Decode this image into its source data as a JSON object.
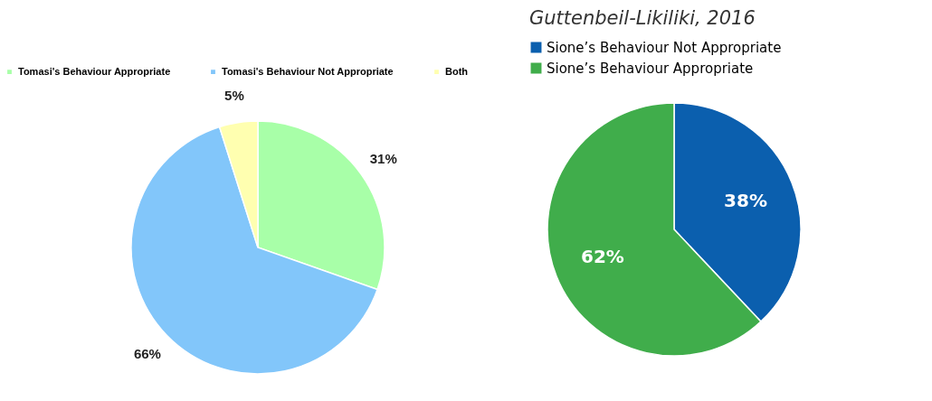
{
  "chart_data": [
    {
      "type": "pie",
      "categories": [
        "Tomasi's Behaviour Appropriate",
        "Tomasi's Behaviour Not Appropriate",
        "Both"
      ],
      "values": [
        31,
        66,
        5
      ],
      "value_labels": [
        "31%",
        "66%",
        "5%"
      ],
      "colors": [
        "#a8ffa8",
        "#82c6fa",
        "#ffffb0"
      ],
      "legend": "top"
    },
    {
      "type": "pie",
      "title": "Guttenbeil-Likiliki, 2016",
      "categories": [
        "Sione’s Behaviour Not Appropriate",
        "Sione’s Behaviour Appropriate"
      ],
      "values": [
        38,
        62
      ],
      "value_labels": [
        "38%",
        "62%"
      ],
      "colors": [
        "#0b5fae",
        "#40ad4b"
      ],
      "legend": "top left"
    }
  ]
}
